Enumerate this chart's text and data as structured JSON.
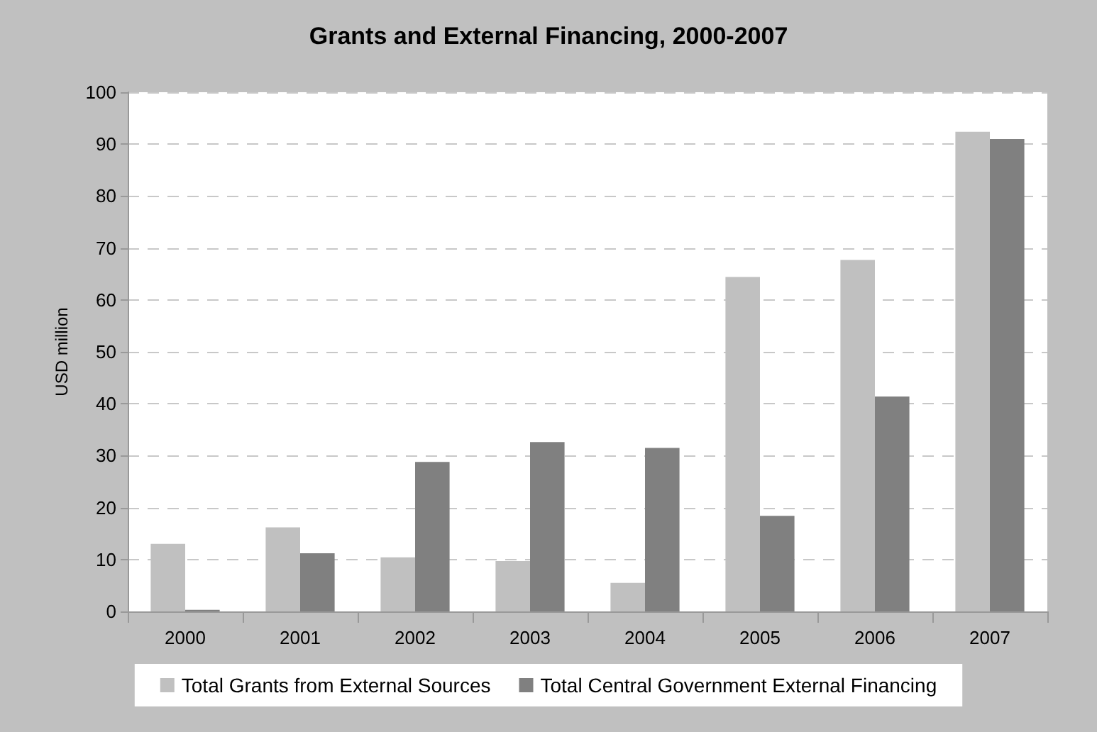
{
  "chart_data": {
    "type": "bar",
    "title": "Grants and External Financing, 2000-2007",
    "ylabel": "USD million",
    "categories": [
      "2000",
      "2001",
      "2002",
      "2003",
      "2004",
      "2005",
      "2006",
      "2007"
    ],
    "series": [
      {
        "name": "Total Grants from External Sources",
        "color": "#c0c0c0",
        "values": [
          13,
          16.2,
          10.4,
          9.7,
          5.5,
          64.4,
          67.7,
          92.4
        ]
      },
      {
        "name": "Total Central Government External Financing",
        "color": "#808080",
        "values": [
          0.3,
          11.2,
          28.8,
          32.6,
          31.5,
          18.4,
          41.4,
          91.0
        ]
      }
    ],
    "ylim": [
      0,
      100
    ],
    "yticks": [
      0,
      10,
      20,
      30,
      40,
      50,
      60,
      70,
      80,
      90,
      100
    ],
    "grid": "y",
    "legend": "bottom"
  }
}
